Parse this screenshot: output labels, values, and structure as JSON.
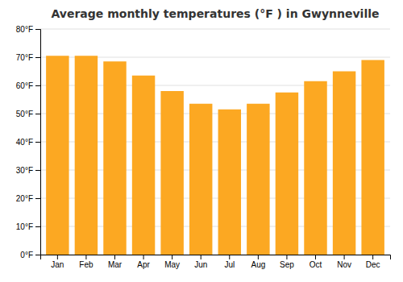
{
  "chart_data": {
    "type": "bar",
    "title": "Average monthly temperatures (°F ) in Gwynneville",
    "categories": [
      "Jan",
      "Feb",
      "Mar",
      "Apr",
      "May",
      "Jun",
      "Jul",
      "Aug",
      "Sep",
      "Oct",
      "Nov",
      "Dec"
    ],
    "values": [
      70.5,
      70.5,
      68.5,
      63.5,
      58.0,
      53.5,
      51.5,
      53.5,
      57.5,
      61.5,
      65.0,
      69.0
    ],
    "color": "#FCA822",
    "ylim": [
      0,
      80
    ],
    "yticks": [
      {
        "value": 0,
        "label": "0°F"
      },
      {
        "value": 10,
        "label": "10°F"
      },
      {
        "value": 20,
        "label": "20°F"
      },
      {
        "value": 30,
        "label": "30°F"
      },
      {
        "value": 40,
        "label": "40°F"
      },
      {
        "value": 50,
        "label": "50°F"
      },
      {
        "value": 60,
        "label": "60°F"
      },
      {
        "value": 70,
        "label": "70°F"
      },
      {
        "value": 80,
        "label": "80°F"
      }
    ],
    "grid": true
  }
}
